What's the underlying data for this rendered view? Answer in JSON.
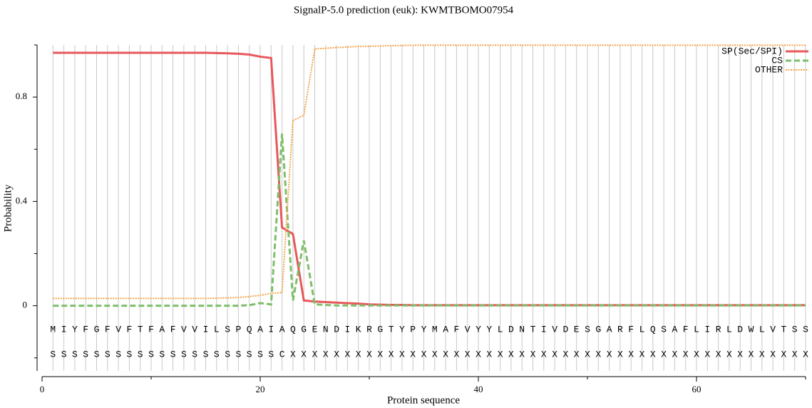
{
  "chart_data": {
    "type": "line",
    "title": "SignalP-5.0 prediction (euk):  KWMTBOMO07954",
    "x_label": "Protein sequence",
    "y_label": "Probability",
    "x": [
      1,
      2,
      3,
      4,
      5,
      6,
      7,
      8,
      9,
      10,
      11,
      12,
      13,
      14,
      15,
      16,
      17,
      18,
      19,
      20,
      21,
      22,
      23,
      24,
      25,
      26,
      27,
      28,
      29,
      30,
      31,
      32,
      33,
      34,
      35,
      36,
      37,
      38,
      39,
      40,
      41,
      42,
      43,
      44,
      45,
      46,
      47,
      48,
      49,
      50,
      51,
      52,
      53,
      54,
      55,
      56,
      57,
      58,
      59,
      60,
      61,
      62,
      63,
      64,
      65,
      66,
      67,
      68,
      69,
      70
    ],
    "sequence": [
      "M",
      "I",
      "Y",
      "F",
      "G",
      "F",
      "V",
      "F",
      "T",
      "F",
      "A",
      "F",
      "V",
      "V",
      "I",
      "L",
      "S",
      "P",
      "Q",
      "A",
      "I",
      "A",
      "Q",
      "G",
      "E",
      "N",
      "D",
      "I",
      "K",
      "R",
      "G",
      "T",
      "Y",
      "P",
      "Y",
      "M",
      "A",
      "F",
      "V",
      "Y",
      "Y",
      "L",
      "D",
      "N",
      "T",
      "I",
      "V",
      "D",
      "E",
      "S",
      "G",
      "A",
      "R",
      "F",
      "L",
      "Q",
      "S",
      "A",
      "F",
      "L",
      "I",
      "R",
      "L",
      "D",
      "W",
      "L",
      "V",
      "T",
      "S",
      "S"
    ],
    "predicted_labels": [
      "S",
      "S",
      "S",
      "S",
      "S",
      "S",
      "S",
      "S",
      "S",
      "S",
      "S",
      "S",
      "S",
      "S",
      "S",
      "S",
      "S",
      "S",
      "S",
      "S",
      "S",
      "C",
      "X",
      "X",
      "X",
      "X",
      "X",
      "X",
      "X",
      "X",
      "X",
      "X",
      "X",
      "X",
      "X",
      "X",
      "X",
      "X",
      "X",
      "X",
      "X",
      "X",
      "X",
      "X",
      "X",
      "X",
      "X",
      "X",
      "X",
      "X",
      "X",
      "X",
      "X",
      "X",
      "X",
      "X",
      "X",
      "X",
      "X",
      "X",
      "X",
      "X",
      "X",
      "X",
      "X",
      "X",
      "X",
      "X",
      "X",
      "X"
    ],
    "series": [
      {
        "name": "SP(Sec/SPI)",
        "color": "#e8575c",
        "dash": "solid",
        "values": [
          0.97,
          0.97,
          0.97,
          0.97,
          0.97,
          0.97,
          0.97,
          0.97,
          0.97,
          0.97,
          0.97,
          0.97,
          0.97,
          0.97,
          0.97,
          0.969,
          0.968,
          0.966,
          0.963,
          0.955,
          0.95,
          0.3,
          0.275,
          0.02,
          0.016,
          0.014,
          0.012,
          0.01,
          0.008,
          0.005,
          0.004,
          0.003,
          0.003,
          0.002,
          0.002,
          0.002,
          0.002,
          0.002,
          0.002,
          0.002,
          0.002,
          0.002,
          0.002,
          0.002,
          0.002,
          0.002,
          0.002,
          0.002,
          0.002,
          0.002,
          0.002,
          0.002,
          0.002,
          0.002,
          0.002,
          0.002,
          0.002,
          0.002,
          0.002,
          0.002,
          0.002,
          0.002,
          0.002,
          0.002,
          0.002,
          0.002,
          0.002,
          0.002,
          0.002,
          0.002
        ]
      },
      {
        "name": "CS",
        "color": "#7dbf6a",
        "dash": "dashed",
        "values": [
          0,
          0,
          0,
          0,
          0,
          0,
          0,
          0,
          0,
          0,
          0,
          0,
          0,
          0,
          0,
          0,
          0,
          0,
          0.002,
          0.01,
          0.005,
          0.66,
          0.02,
          0.25,
          0.005,
          0.003,
          0.001,
          0.001,
          0.001,
          0.001,
          0.001,
          0.001,
          0.001,
          0.001,
          0.001,
          0.001,
          0.001,
          0.001,
          0.001,
          0.001,
          0.001,
          0.001,
          0.001,
          0.001,
          0.001,
          0.001,
          0.001,
          0.001,
          0.001,
          0.001,
          0.001,
          0.001,
          0.001,
          0.001,
          0.001,
          0.001,
          0.001,
          0.001,
          0.001,
          0.001,
          0.001,
          0.001,
          0.001,
          0.001,
          0.001,
          0.001,
          0.001,
          0.001,
          0.001,
          0.001
        ]
      },
      {
        "name": "OTHER",
        "color": "#f5a347",
        "dash": "dotted",
        "values": [
          0.028,
          0.028,
          0.028,
          0.028,
          0.028,
          0.028,
          0.028,
          0.028,
          0.028,
          0.028,
          0.028,
          0.028,
          0.028,
          0.028,
          0.028,
          0.029,
          0.03,
          0.032,
          0.035,
          0.04,
          0.047,
          0.05,
          0.71,
          0.73,
          0.985,
          0.987,
          0.99,
          0.992,
          0.994,
          0.995,
          0.996,
          0.997,
          0.998,
          0.999,
          0.999,
          0.999,
          0.999,
          0.999,
          0.999,
          0.999,
          0.999,
          0.999,
          0.999,
          0.999,
          0.999,
          0.999,
          0.999,
          0.999,
          0.999,
          0.999,
          0.999,
          0.999,
          0.999,
          0.999,
          0.999,
          0.999,
          0.999,
          0.999,
          0.999,
          0.999,
          0.999,
          0.999,
          0.999,
          0.999,
          0.999,
          0.999,
          0.999,
          0.999,
          0.999,
          0.999
        ]
      }
    ],
    "xlim": [
      0,
      70
    ],
    "xticks": [
      0,
      20,
      40,
      60
    ],
    "xminor_ticks": [
      10,
      30,
      50,
      70
    ],
    "ylim": [
      -0.25,
      1.0
    ],
    "yticks": [
      0,
      0.4,
      0.8
    ],
    "yminor_ticks": [
      -0.2,
      0.2,
      0.6,
      1.0
    ],
    "grid": true,
    "legend": "upper right"
  }
}
